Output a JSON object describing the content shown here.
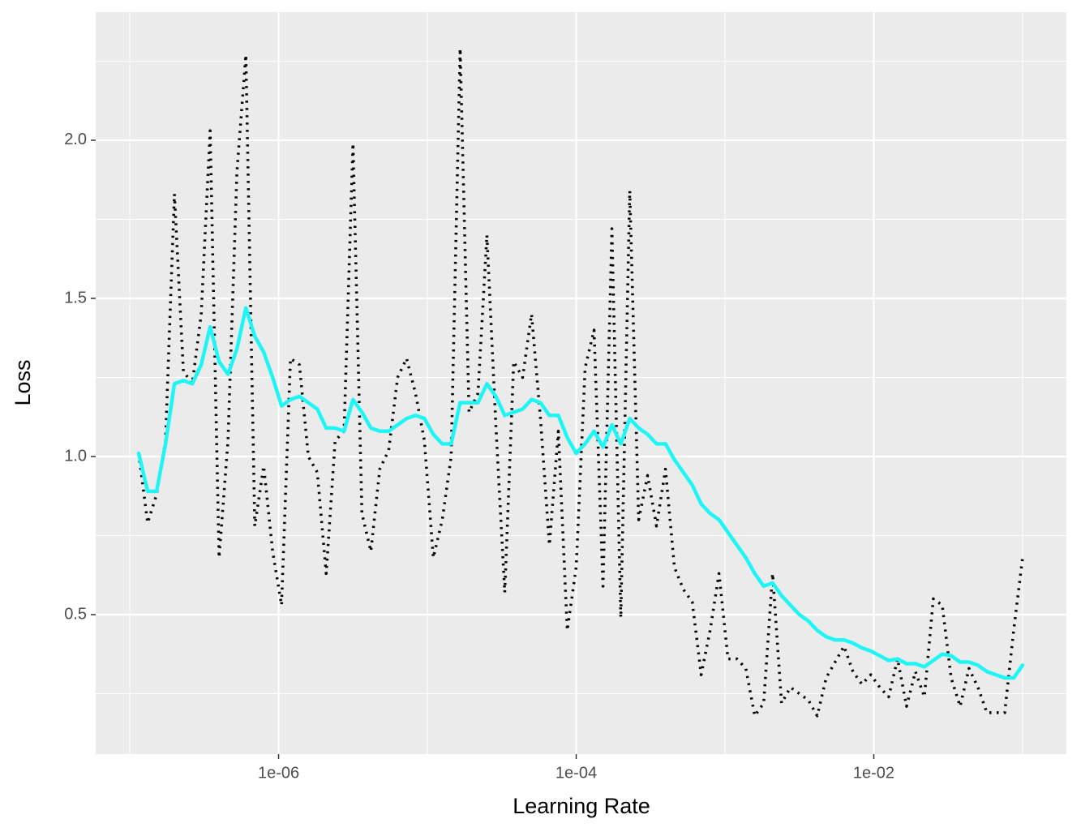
{
  "chart_data": {
    "type": "line",
    "x_label": "Learning Rate",
    "y_label": "Loss",
    "x_scale": "log",
    "xlim": [
      5.9e-08,
      0.197
    ],
    "ylim": [
      0.059,
      2.405
    ],
    "xticks": [
      {
        "value": 1e-06,
        "label": "1e-06"
      },
      {
        "value": 0.0001,
        "label": "1e-04"
      },
      {
        "value": 0.01,
        "label": "1e-02"
      }
    ],
    "x_minor_ticks": [
      1e-07,
      1e-05,
      0.001,
      0.1
    ],
    "yticks": [
      {
        "value": 0.5,
        "label": "0.5"
      },
      {
        "value": 1,
        "label": "1.0"
      },
      {
        "value": 1.5,
        "label": "1.5"
      },
      {
        "value": 2,
        "label": "2.0"
      }
    ],
    "y_minor_ticks": [
      0.25,
      0.75,
      1.25,
      1.75,
      2.25
    ],
    "grid": true,
    "x": [
      1.148e-07,
      1.318e-07,
      1.514e-07,
      1.738e-07,
      1.995e-07,
      2.291e-07,
      2.63e-07,
      3.02e-07,
      3.467e-07,
      3.981e-07,
      4.571e-07,
      5.248e-07,
      6.026e-07,
      6.918e-07,
      7.943e-07,
      9.12e-07,
      1.047e-06,
      1.202e-06,
      1.38e-06,
      1.585e-06,
      1.82e-06,
      2.089e-06,
      2.399e-06,
      2.754e-06,
      3.162e-06,
      3.631e-06,
      4.169e-06,
      4.786e-06,
      5.495e-06,
      6.31e-06,
      7.244e-06,
      8.318e-06,
      9.55e-06,
      1.096e-05,
      1.259e-05,
      1.445e-05,
      1.66e-05,
      1.905e-05,
      2.188e-05,
      2.512e-05,
      2.884e-05,
      3.311e-05,
      3.802e-05,
      4.365e-05,
      5.012e-05,
      5.754e-05,
      6.607e-05,
      7.586e-05,
      8.71e-05,
      0.0001,
      0.0001148,
      0.0001318,
      0.0001514,
      0.0001738,
      0.0001995,
      0.0002291,
      0.000263,
      0.000302,
      0.0003467,
      0.0003981,
      0.0004571,
      0.0005248,
      0.0006026,
      0.0006918,
      0.0007943,
      0.000912,
      0.001047,
      0.001202,
      0.00138,
      0.001585,
      0.00182,
      0.002089,
      0.002399,
      0.002754,
      0.003162,
      0.003631,
      0.004169,
      0.004786,
      0.005495,
      0.00631,
      0.007244,
      0.008318,
      0.00955,
      0.01096,
      0.01259,
      0.01445,
      0.0166,
      0.01905,
      0.02188,
      0.02512,
      0.02884,
      0.03311,
      0.03802,
      0.04365,
      0.05012,
      0.05754,
      0.06607,
      0.07586,
      0.0871,
      0.1
    ],
    "series": [
      {
        "color": "#000000",
        "dash": "dotted",
        "values": [
          1.01,
          0.79,
          0.88,
          1.05,
          1.83,
          1.27,
          1.23,
          1.45,
          2.03,
          0.68,
          1.05,
          1.9,
          2.27,
          0.78,
          0.97,
          0.7,
          0.53,
          1.31,
          1.29,
          1.0,
          0.95,
          0.63,
          1.05,
          1.08,
          1.99,
          0.82,
          0.7,
          0.96,
          1.02,
          1.25,
          1.31,
          1.2,
          1.05,
          0.68,
          0.8,
          1.0,
          2.29,
          1.14,
          1.2,
          1.7,
          1.1,
          0.57,
          1.3,
          1.25,
          1.45,
          1.12,
          0.72,
          1.08,
          0.45,
          0.65,
          1.28,
          1.4,
          0.59,
          1.72,
          0.49,
          1.84,
          0.8,
          0.94,
          0.78,
          0.96,
          0.65,
          0.58,
          0.54,
          0.31,
          0.45,
          0.63,
          0.36,
          0.36,
          0.33,
          0.18,
          0.22,
          0.63,
          0.22,
          0.27,
          0.25,
          0.23,
          0.18,
          0.3,
          0.35,
          0.4,
          0.32,
          0.28,
          0.31,
          0.27,
          0.24,
          0.36,
          0.21,
          0.32,
          0.24,
          0.55,
          0.53,
          0.3,
          0.21,
          0.33,
          0.27,
          0.19,
          0.19,
          0.19,
          0.45,
          0.68
        ]
      },
      {
        "color": "#1ff5f5",
        "dash": "solid",
        "values": [
          1.01,
          0.89,
          0.89,
          1.04,
          1.23,
          1.24,
          1.23,
          1.29,
          1.41,
          1.3,
          1.26,
          1.34,
          1.47,
          1.38,
          1.33,
          1.25,
          1.16,
          1.18,
          1.19,
          1.17,
          1.15,
          1.09,
          1.09,
          1.08,
          1.18,
          1.14,
          1.09,
          1.08,
          1.08,
          1.1,
          1.12,
          1.13,
          1.12,
          1.07,
          1.04,
          1.04,
          1.17,
          1.17,
          1.17,
          1.23,
          1.19,
          1.13,
          1.14,
          1.15,
          1.18,
          1.17,
          1.13,
          1.13,
          1.06,
          1.01,
          1.04,
          1.08,
          1.03,
          1.1,
          1.04,
          1.12,
          1.09,
          1.07,
          1.04,
          1.04,
          0.99,
          0.95,
          0.91,
          0.85,
          0.82,
          0.8,
          0.76,
          0.72,
          0.68,
          0.63,
          0.59,
          0.6,
          0.56,
          0.53,
          0.5,
          0.48,
          0.45,
          0.43,
          0.42,
          0.42,
          0.41,
          0.395,
          0.385,
          0.37,
          0.355,
          0.36,
          0.345,
          0.345,
          0.335,
          0.355,
          0.375,
          0.37,
          0.35,
          0.35,
          0.34,
          0.32,
          0.31,
          0.3,
          0.3,
          0.34
        ]
      }
    ]
  }
}
